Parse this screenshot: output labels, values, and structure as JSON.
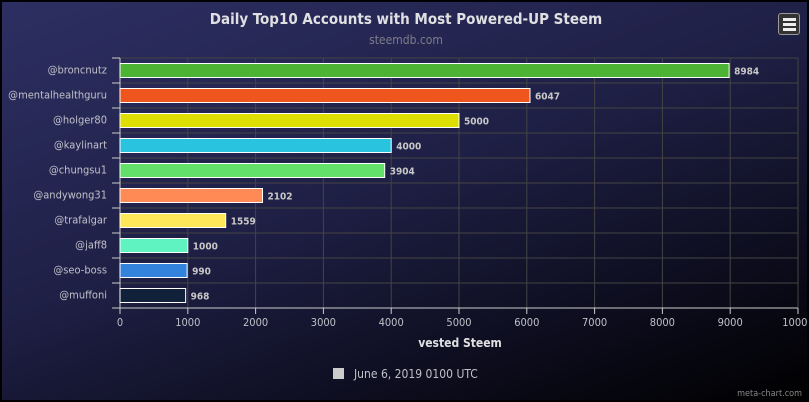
{
  "chart_data": {
    "type": "bar",
    "orientation": "horizontal",
    "title": "Daily Top10 Accounts with Most Powered-UP Steem",
    "subtitle": "steemdb.com",
    "xlabel": "vested Steem",
    "ylabel": "",
    "xlim": [
      0,
      10000
    ],
    "xticks": [
      "0",
      "1000",
      "2000",
      "3000",
      "4000",
      "5000",
      "6000",
      "7000",
      "8000",
      "9000",
      "10000"
    ],
    "grid": true,
    "categories": [
      "@broncnutz",
      "@mentalhealthguru",
      "@holger80",
      "@kaylinart",
      "@chungsu1",
      "@andywong31",
      "@trafalgar",
      "@jaff8",
      "@seo-boss",
      "@muffoni"
    ],
    "values": [
      8984,
      6047,
      5000,
      4000,
      3904,
      2102,
      1559,
      1000,
      990,
      968
    ],
    "colors": [
      "#4db335",
      "#ee561e",
      "#dede00",
      "#29c3e0",
      "#63e06a",
      "#ff8a55",
      "#fee85a",
      "#5ef3c0",
      "#3382dc",
      "#11213a"
    ],
    "legend": {
      "label": "June 6, 2019 0100 UTC",
      "position": "bottom",
      "color": "#cccccc"
    },
    "credit": "meta-chart.com"
  }
}
